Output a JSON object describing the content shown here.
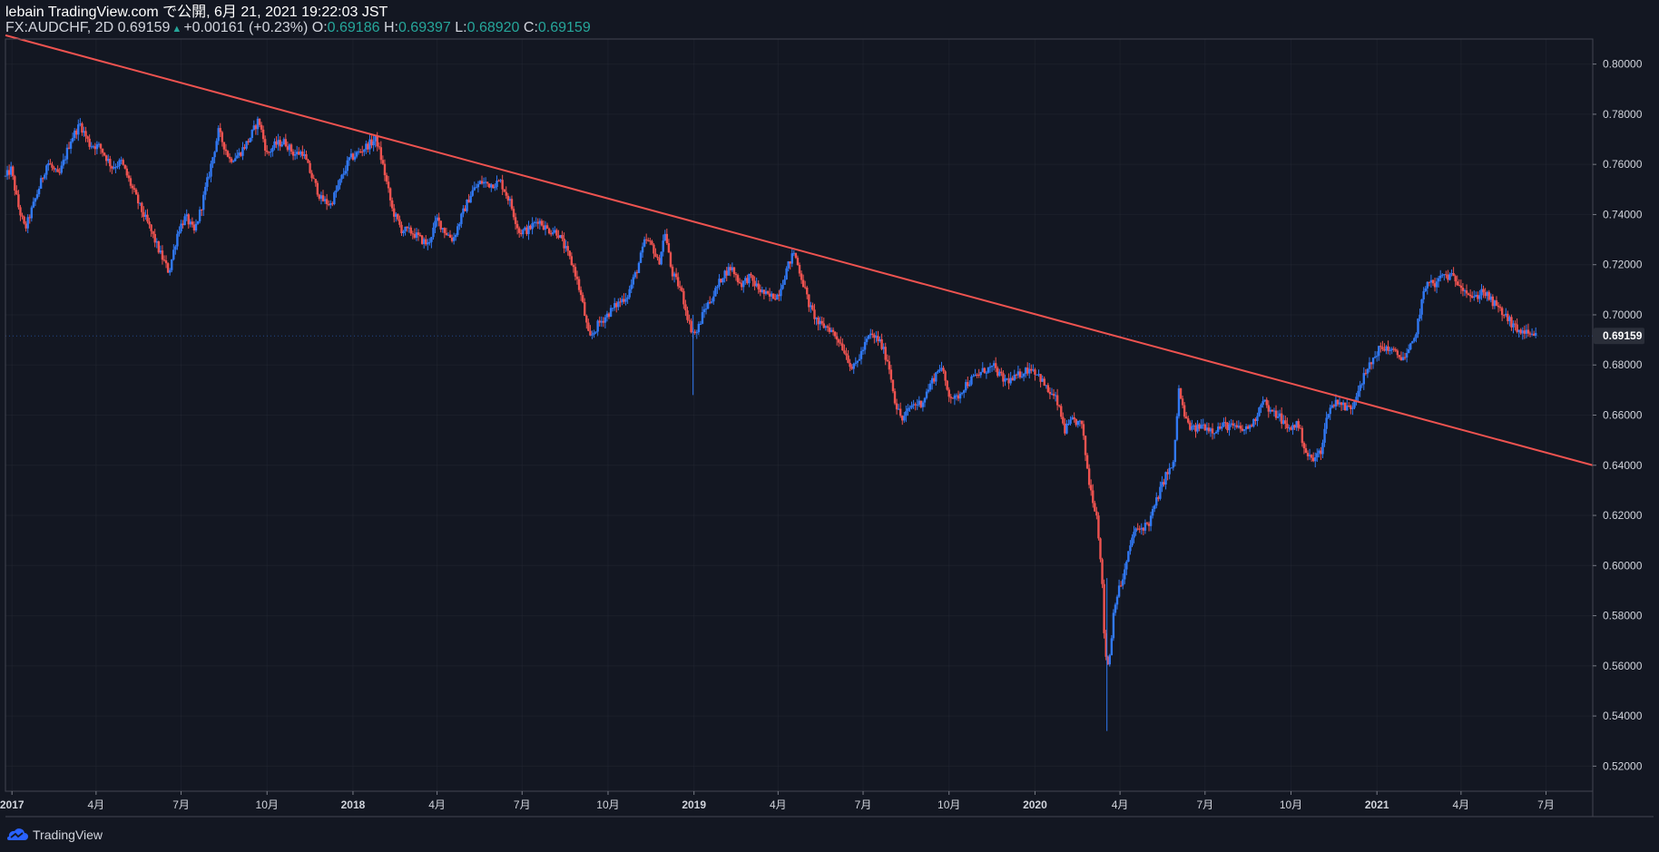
{
  "header": {
    "line1": "lebain TradingView.com で公開, 6月 21, 2021 19:22:03 JST",
    "symbol": "FX:AUDCHF, 2D",
    "last": "0.69159",
    "change": "+0.00161 (+0.23%)",
    "o_label": "O:",
    "o_value": "0.69186",
    "h_label": "H:",
    "h_value": "0.69397",
    "l_label": "L:",
    "l_value": "0.68920",
    "c_label": "C:",
    "c_value": "0.69159"
  },
  "footer": {
    "brand": "TradingView"
  },
  "colors": {
    "background": "#131722",
    "up": "#2962ff",
    "up_candle": "#3179f5",
    "down": "#ef5350",
    "trendline": "#ef5350",
    "grid": "#2a2e39",
    "text": "#d1d4dc",
    "ohlc_value": "#26a69a"
  },
  "chart_data": {
    "type": "candlestick",
    "symbol": "FX:AUDCHF",
    "interval": "2D",
    "last_price": 0.69159,
    "last_price_label": "0.69159",
    "ylim": [
      0.51,
      0.81
    ],
    "yticks": [
      0.52,
      0.54,
      0.56,
      0.58,
      0.6,
      0.62,
      0.64,
      0.66,
      0.68,
      0.7,
      0.72,
      0.74,
      0.76,
      0.78,
      0.8
    ],
    "ytick_labels": [
      "0.52000",
      "0.54000",
      "0.56000",
      "0.58000",
      "0.60000",
      "0.62000",
      "0.64000",
      "0.66000",
      "0.68000",
      "0.70000",
      "0.72000",
      "0.74000",
      "0.76000",
      "0.78000",
      "0.80000"
    ],
    "xlim": [
      "2016-12-25",
      "2021-08-20"
    ],
    "xticks": [
      {
        "date": "2017-01-01",
        "label": "2017"
      },
      {
        "date": "2017-04-01",
        "label": "4月"
      },
      {
        "date": "2017-07-01",
        "label": "7月"
      },
      {
        "date": "2017-10-01",
        "label": "10月"
      },
      {
        "date": "2018-01-01",
        "label": "2018"
      },
      {
        "date": "2018-04-01",
        "label": "4月"
      },
      {
        "date": "2018-07-01",
        "label": "7月"
      },
      {
        "date": "2018-10-01",
        "label": "10月"
      },
      {
        "date": "2019-01-01",
        "label": "2019"
      },
      {
        "date": "2019-04-01",
        "label": "4月"
      },
      {
        "date": "2019-07-01",
        "label": "7月"
      },
      {
        "date": "2019-10-01",
        "label": "10月"
      },
      {
        "date": "2020-01-01",
        "label": "2020"
      },
      {
        "date": "2020-04-01",
        "label": "4月"
      },
      {
        "date": "2020-07-01",
        "label": "7月"
      },
      {
        "date": "2020-10-01",
        "label": "10月"
      },
      {
        "date": "2021-01-01",
        "label": "2021"
      },
      {
        "date": "2021-04-01",
        "label": "4月"
      },
      {
        "date": "2021-07-01",
        "label": "7月"
      }
    ],
    "price_path": [
      [
        "2016-12-25",
        0.755
      ],
      [
        "2016-12-31",
        0.758
      ],
      [
        "2017-01-08",
        0.743
      ],
      [
        "2017-01-15",
        0.734
      ],
      [
        "2017-01-25",
        0.745
      ],
      [
        "2017-02-08",
        0.761
      ],
      [
        "2017-02-20",
        0.755
      ],
      [
        "2017-03-05",
        0.77
      ],
      [
        "2017-03-15",
        0.776
      ],
      [
        "2017-03-25",
        0.768
      ],
      [
        "2017-04-05",
        0.767
      ],
      [
        "2017-04-18",
        0.759
      ],
      [
        "2017-04-28",
        0.761
      ],
      [
        "2017-05-08",
        0.752
      ],
      [
        "2017-05-18",
        0.743
      ],
      [
        "2017-05-28",
        0.735
      ],
      [
        "2017-06-08",
        0.725
      ],
      [
        "2017-06-18",
        0.717
      ],
      [
        "2017-06-28",
        0.734
      ],
      [
        "2017-07-06",
        0.739
      ],
      [
        "2017-07-15",
        0.733
      ],
      [
        "2017-07-22",
        0.742
      ],
      [
        "2017-08-01",
        0.758
      ],
      [
        "2017-08-10",
        0.773
      ],
      [
        "2017-08-22",
        0.762
      ],
      [
        "2017-09-01",
        0.764
      ],
      [
        "2017-09-12",
        0.77
      ],
      [
        "2017-09-22",
        0.778
      ],
      [
        "2017-10-01",
        0.764
      ],
      [
        "2017-10-10",
        0.768
      ],
      [
        "2017-10-20",
        0.769
      ],
      [
        "2017-10-30",
        0.764
      ],
      [
        "2017-11-08",
        0.765
      ],
      [
        "2017-11-18",
        0.755
      ],
      [
        "2017-11-28",
        0.746
      ],
      [
        "2017-12-08",
        0.744
      ],
      [
        "2017-12-18",
        0.753
      ],
      [
        "2017-12-28",
        0.762
      ],
      [
        "2018-01-08",
        0.765
      ],
      [
        "2018-01-18",
        0.768
      ],
      [
        "2018-01-26",
        0.77
      ],
      [
        "2018-02-03",
        0.758
      ],
      [
        "2018-02-12",
        0.742
      ],
      [
        "2018-02-22",
        0.734
      ],
      [
        "2018-03-05",
        0.733
      ],
      [
        "2018-03-15",
        0.73
      ],
      [
        "2018-03-22",
        0.728
      ],
      [
        "2018-04-01",
        0.738
      ],
      [
        "2018-04-10",
        0.733
      ],
      [
        "2018-04-18",
        0.73
      ],
      [
        "2018-04-28",
        0.74
      ],
      [
        "2018-05-08",
        0.749
      ],
      [
        "2018-05-18",
        0.753
      ],
      [
        "2018-05-28",
        0.752
      ],
      [
        "2018-06-08",
        0.753
      ],
      [
        "2018-06-18",
        0.745
      ],
      [
        "2018-06-28",
        0.733
      ],
      [
        "2018-07-08",
        0.734
      ],
      [
        "2018-07-18",
        0.738
      ],
      [
        "2018-07-28",
        0.734
      ],
      [
        "2018-08-08",
        0.733
      ],
      [
        "2018-08-18",
        0.725
      ],
      [
        "2018-08-26",
        0.718
      ],
      [
        "2018-09-03",
        0.706
      ],
      [
        "2018-09-11",
        0.69
      ],
      [
        "2018-09-20",
        0.696
      ],
      [
        "2018-09-30",
        0.7
      ],
      [
        "2018-10-10",
        0.704
      ],
      [
        "2018-10-22",
        0.708
      ],
      [
        "2018-11-01",
        0.718
      ],
      [
        "2018-11-10",
        0.73
      ],
      [
        "2018-11-18",
        0.727
      ],
      [
        "2018-11-24",
        0.72
      ],
      [
        "2018-12-01",
        0.733
      ],
      [
        "2018-12-08",
        0.717
      ],
      [
        "2018-12-18",
        0.71
      ],
      [
        "2018-12-28",
        0.695
      ],
      [
        "2019-01-03",
        0.692
      ],
      [
        "2019-01-12",
        0.702
      ],
      [
        "2019-01-22",
        0.708
      ],
      [
        "2019-02-01",
        0.716
      ],
      [
        "2019-02-10",
        0.719
      ],
      [
        "2019-02-20",
        0.712
      ],
      [
        "2019-03-01",
        0.715
      ],
      [
        "2019-03-12",
        0.71
      ],
      [
        "2019-03-22",
        0.707
      ],
      [
        "2019-04-01",
        0.708
      ],
      [
        "2019-04-10",
        0.718
      ],
      [
        "2019-04-18",
        0.725
      ],
      [
        "2019-04-26",
        0.715
      ],
      [
        "2019-05-05",
        0.703
      ],
      [
        "2019-05-15",
        0.696
      ],
      [
        "2019-05-25",
        0.695
      ],
      [
        "2019-06-05",
        0.69
      ],
      [
        "2019-06-12",
        0.685
      ],
      [
        "2019-06-20",
        0.678
      ],
      [
        "2019-06-28",
        0.684
      ],
      [
        "2019-07-08",
        0.692
      ],
      [
        "2019-07-18",
        0.69
      ],
      [
        "2019-07-28",
        0.681
      ],
      [
        "2019-08-05",
        0.664
      ],
      [
        "2019-08-12",
        0.658
      ],
      [
        "2019-08-22",
        0.664
      ],
      [
        "2019-09-02",
        0.665
      ],
      [
        "2019-09-12",
        0.673
      ],
      [
        "2019-09-22",
        0.68
      ],
      [
        "2019-09-30",
        0.669
      ],
      [
        "2019-10-08",
        0.666
      ],
      [
        "2019-10-18",
        0.672
      ],
      [
        "2019-10-28",
        0.675
      ],
      [
        "2019-11-08",
        0.678
      ],
      [
        "2019-11-18",
        0.679
      ],
      [
        "2019-11-28",
        0.674
      ],
      [
        "2019-12-08",
        0.674
      ],
      [
        "2019-12-18",
        0.677
      ],
      [
        "2019-12-28",
        0.679
      ],
      [
        "2020-01-05",
        0.676
      ],
      [
        "2020-01-14",
        0.67
      ],
      [
        "2020-01-24",
        0.666
      ],
      [
        "2020-02-02",
        0.654
      ],
      [
        "2020-02-11",
        0.658
      ],
      [
        "2020-02-20",
        0.656
      ],
      [
        "2020-02-28",
        0.633
      ],
      [
        "2020-03-07",
        0.62
      ],
      [
        "2020-03-12",
        0.6
      ],
      [
        "2020-03-16",
        0.565
      ],
      [
        "2020-03-20",
        0.56
      ],
      [
        "2020-03-26",
        0.585
      ],
      [
        "2020-04-05",
        0.596
      ],
      [
        "2020-04-15",
        0.613
      ],
      [
        "2020-04-24",
        0.615
      ],
      [
        "2020-05-02",
        0.617
      ],
      [
        "2020-05-12",
        0.628
      ],
      [
        "2020-05-20",
        0.636
      ],
      [
        "2020-05-28",
        0.64
      ],
      [
        "2020-06-03",
        0.67
      ],
      [
        "2020-06-10",
        0.658
      ],
      [
        "2020-06-18",
        0.654
      ],
      [
        "2020-06-28",
        0.656
      ],
      [
        "2020-07-10",
        0.654
      ],
      [
        "2020-07-22",
        0.656
      ],
      [
        "2020-08-02",
        0.655
      ],
      [
        "2020-08-12",
        0.654
      ],
      [
        "2020-08-22",
        0.657
      ],
      [
        "2020-09-01",
        0.667
      ],
      [
        "2020-09-08",
        0.661
      ],
      [
        "2020-09-18",
        0.66
      ],
      [
        "2020-09-28",
        0.654
      ],
      [
        "2020-10-08",
        0.657
      ],
      [
        "2020-10-18",
        0.644
      ],
      [
        "2020-10-25",
        0.642
      ],
      [
        "2020-11-02",
        0.646
      ],
      [
        "2020-11-10",
        0.662
      ],
      [
        "2020-11-20",
        0.666
      ],
      [
        "2020-11-28",
        0.663
      ],
      [
        "2020-12-05",
        0.663
      ],
      [
        "2020-12-12",
        0.671
      ],
      [
        "2020-12-22",
        0.678
      ],
      [
        "2021-01-02",
        0.686
      ],
      [
        "2021-01-12",
        0.687
      ],
      [
        "2021-01-22",
        0.684
      ],
      [
        "2021-02-01",
        0.683
      ],
      [
        "2021-02-10",
        0.69
      ],
      [
        "2021-02-18",
        0.705
      ],
      [
        "2021-02-25",
        0.715
      ],
      [
        "2021-03-03",
        0.711
      ],
      [
        "2021-03-12",
        0.716
      ],
      [
        "2021-03-22",
        0.715
      ],
      [
        "2021-03-30",
        0.713
      ],
      [
        "2021-04-08",
        0.709
      ],
      [
        "2021-04-15",
        0.706
      ],
      [
        "2021-04-24",
        0.71
      ],
      [
        "2021-05-02",
        0.706
      ],
      [
        "2021-05-12",
        0.702
      ],
      [
        "2021-05-22",
        0.698
      ],
      [
        "2021-05-30",
        0.694
      ],
      [
        "2021-06-08",
        0.693
      ],
      [
        "2021-06-15",
        0.691
      ],
      [
        "2021-06-21",
        0.6916
      ]
    ],
    "trendline": {
      "start": [
        "2016-12-25",
        0.8115
      ],
      "end": [
        "2021-08-20",
        0.64
      ],
      "color": "#ef5350"
    },
    "annotations": [
      {
        "date": "2020-03-18",
        "low": 0.534,
        "high": 0.595,
        "note": "long lower wick"
      },
      {
        "date": "2018-12-31",
        "low": 0.668,
        "high": 0.7,
        "note": "flash-crash wick"
      }
    ]
  }
}
